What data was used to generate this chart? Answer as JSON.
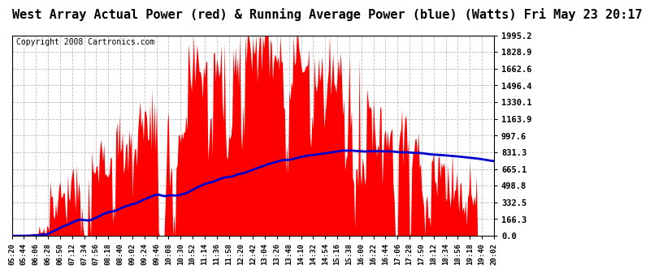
{
  "title": "West Array Actual Power (red) & Running Average Power (blue) (Watts) Fri May 23 20:17",
  "copyright": "Copyright 2008 Cartronics.com",
  "yticks": [
    0.0,
    166.3,
    332.5,
    498.8,
    665.1,
    831.3,
    997.6,
    1163.9,
    1330.1,
    1496.4,
    1662.6,
    1828.9,
    1995.2
  ],
  "xtick_labels": [
    "05:20",
    "05:44",
    "06:06",
    "06:28",
    "06:50",
    "07:12",
    "07:34",
    "07:56",
    "08:18",
    "08:40",
    "09:02",
    "09:24",
    "09:46",
    "10:08",
    "10:30",
    "10:52",
    "11:14",
    "11:36",
    "11:58",
    "12:20",
    "12:42",
    "13:04",
    "13:26",
    "13:48",
    "14:10",
    "14:32",
    "14:54",
    "15:16",
    "15:38",
    "16:00",
    "16:22",
    "16:44",
    "17:06",
    "17:28",
    "17:50",
    "18:12",
    "18:34",
    "18:56",
    "19:18",
    "19:40",
    "20:02"
  ],
  "ymax": 1995.2,
  "ymin": 0.0,
  "bar_color": "#FF0000",
  "avg_color": "#0000CC",
  "bg_color": "#FFFFFF",
  "grid_color": "#AAAAAA",
  "title_fontsize": 11,
  "copyright_fontsize": 7
}
